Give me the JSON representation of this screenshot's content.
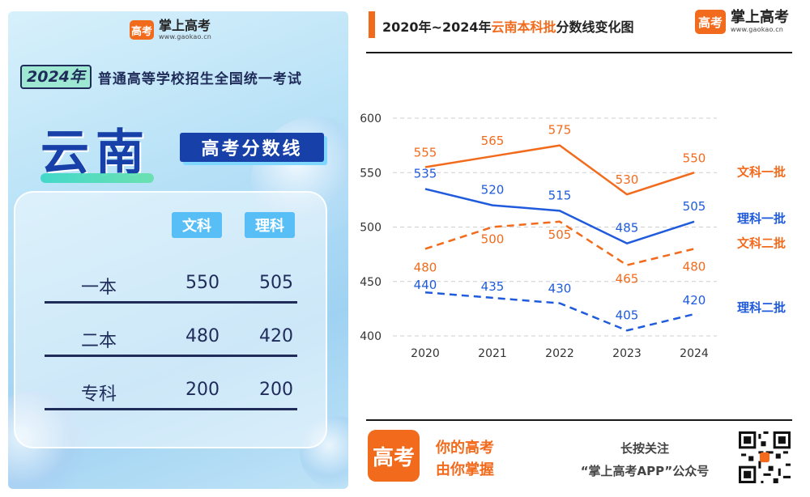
{
  "left_panel": {
    "logo": {
      "name": "掌上高考",
      "url": "www.gaokao.cn",
      "badge": "高考"
    },
    "exam": {
      "year": "2024年",
      "title": "普通高等学校招生全国统一考试"
    },
    "province": "云南",
    "score_title": "高考分数线",
    "table": {
      "headers": [
        "文科",
        "理科"
      ],
      "rows": [
        {
          "label": "一本",
          "wen": "550",
          "li": "505"
        },
        {
          "label": "二本",
          "wen": "480",
          "li": "420"
        },
        {
          "label": "专科",
          "wen": "200",
          "li": "200"
        }
      ]
    }
  },
  "right_panel": {
    "title_prefix": "2020年~2024年",
    "title_highlight": "云南本科批",
    "title_suffix": "分数线变化图",
    "logo": {
      "name": "掌上高考",
      "url": "www.gaokao.cn",
      "badge": "高考"
    },
    "footer": {
      "badge": "高考",
      "slogan_line1": "你的高考",
      "slogan_line2": "由你掌握",
      "follow_line1": "长按关注",
      "follow_line2": "“掌上高考APP”公众号"
    }
  },
  "chart_data": {
    "type": "line",
    "title": "2020年~2024年云南本科批分数线变化图",
    "x": [
      "2020",
      "2021",
      "2022",
      "2023",
      "2024"
    ],
    "ylim": [
      400,
      600
    ],
    "yticks": [
      400,
      450,
      500,
      550,
      600
    ],
    "grid": true,
    "legend_placement": "right, at line ends",
    "series": [
      {
        "name": "文科一批",
        "values": [
          555,
          565,
          575,
          530,
          550
        ],
        "color": "#f26b1d",
        "dashed": false
      },
      {
        "name": "理科一批",
        "values": [
          535,
          520,
          515,
          485,
          505
        ],
        "color": "#1f5bdc",
        "dashed": false
      },
      {
        "name": "文科二批",
        "values": [
          480,
          500,
          505,
          465,
          480
        ],
        "color": "#f26b1d",
        "dashed": true
      },
      {
        "name": "理科二批",
        "values": [
          440,
          435,
          430,
          405,
          420
        ],
        "color": "#1f5bdc",
        "dashed": true
      }
    ]
  }
}
